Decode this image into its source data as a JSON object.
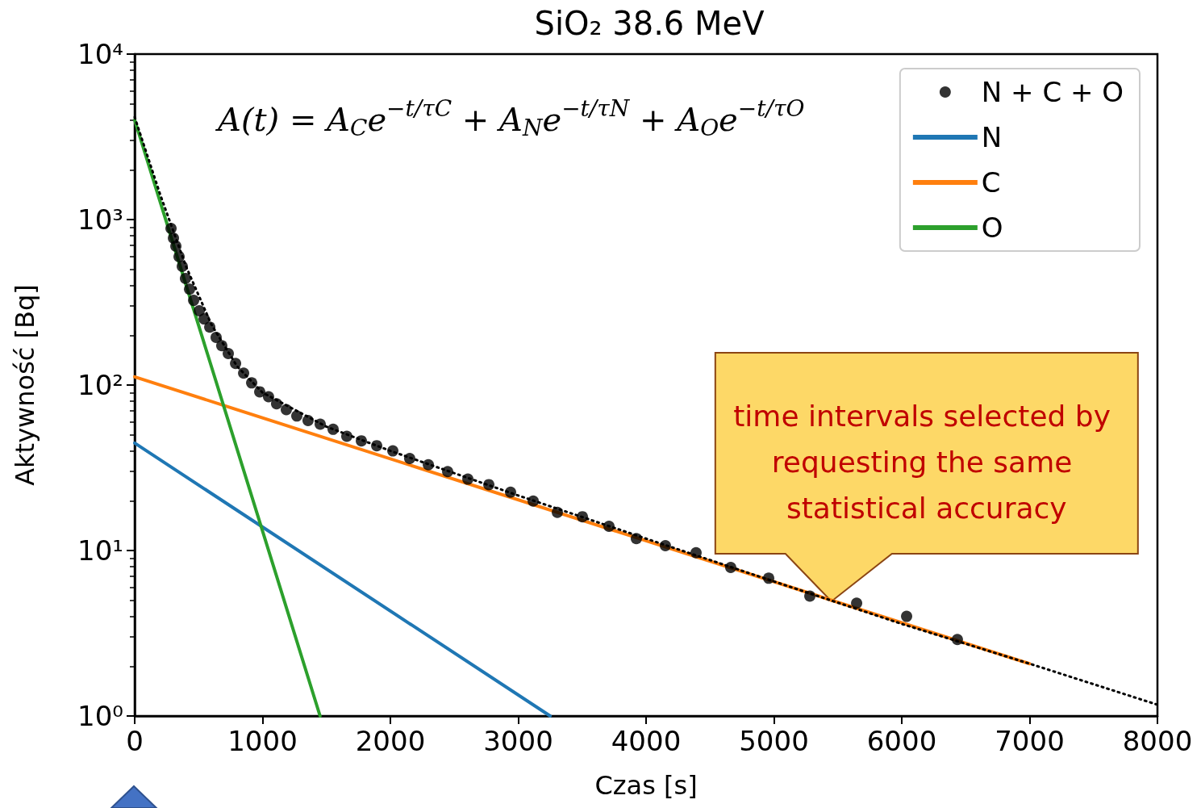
{
  "chart_data": {
    "type": "scatter",
    "title": "SiO₂ 38.6 MeV",
    "xlabel": "Czas [s]",
    "ylabel": "Aktywność [Bq]",
    "xlim": [
      0,
      8000
    ],
    "xticks": [
      0,
      1000,
      2000,
      3000,
      4000,
      5000,
      6000,
      7000,
      8000
    ],
    "ylim": [
      1,
      10000
    ],
    "yticks": [
      {
        "value": 1,
        "label": "10⁰"
      },
      {
        "value": 10,
        "label": "10¹"
      },
      {
        "value": 100,
        "label": "10²"
      },
      {
        "value": 1000,
        "label": "10³"
      },
      {
        "value": 10000,
        "label": "10⁴"
      }
    ],
    "log": "y",
    "grid": false,
    "legend": "top right",
    "marker": "circle",
    "series": [
      {
        "name": "N + C + O",
        "color": "#000000",
        "x": [
          284,
          303,
          322,
          347,
          372,
          397,
          429,
          461,
          505,
          543,
          587,
          637,
          681,
          732,
          789,
          852,
          915,
          978,
          1047,
          1110,
          1186,
          1268,
          1356,
          1451,
          1552,
          1659,
          1773,
          1893,
          2019,
          2151,
          2297,
          2448,
          2606,
          2770,
          2940,
          3117,
          3306,
          3502,
          3710,
          3924,
          4151,
          4391,
          4662,
          4959,
          5281,
          5647,
          6038,
          6435
        ],
        "values": [
          884,
          772,
          691,
          597,
          521,
          441,
          380,
          325,
          281,
          251,
          224,
          194,
          173,
          155,
          135,
          118,
          103,
          91,
          85,
          77,
          71,
          65,
          61,
          58,
          54,
          49,
          46,
          43,
          40,
          36,
          33,
          30,
          27,
          25,
          22.5,
          19.9,
          17,
          16,
          14,
          11.8,
          10.7,
          9.7,
          7.9,
          6.8,
          5.3,
          4.8,
          4.0,
          2.9
        ]
      },
      {
        "name": "N",
        "type": "line",
        "color": "#1f77b4",
        "marker": "none",
        "x": [
          0,
          3250
        ],
        "values": [
          44.6,
          1
        ]
      },
      {
        "name": "C",
        "type": "line",
        "color": "#ff7f0e",
        "marker": "none",
        "x": [
          0,
          7000
        ],
        "values": [
          112,
          2.07
        ]
      },
      {
        "name": "O",
        "type": "line",
        "color": "#2ca02c",
        "marker": "none",
        "x": [
          0,
          1450
        ],
        "values": [
          4000,
          1
        ]
      },
      {
        "type": "line",
        "color": "#000000",
        "marker": "none",
        "line_style": "dotted",
        "x": [
          0,
          200,
          400,
          600,
          800,
          1000,
          1500,
          2000,
          3000,
          4000,
          5000,
          6000,
          7000,
          8000
        ],
        "values": [
          4157,
          1411,
          524,
          232,
          130,
          90,
          56,
          40,
          21.5,
          11.8,
          6.5,
          3.6,
          2.07,
          1.17
        ]
      }
    ],
    "annotations": [
      "A(t) = A$_{C}$e$^{−t/τC}$ + A$_{N}$e$^{−t/τN}$ + A$_{O}$e$^{−t/τO}$",
      {
        "text": "time intervals selected by requesting the same statistical accuracy",
        "x": 5450,
        "y": 4.93
      }
    ]
  }
}
